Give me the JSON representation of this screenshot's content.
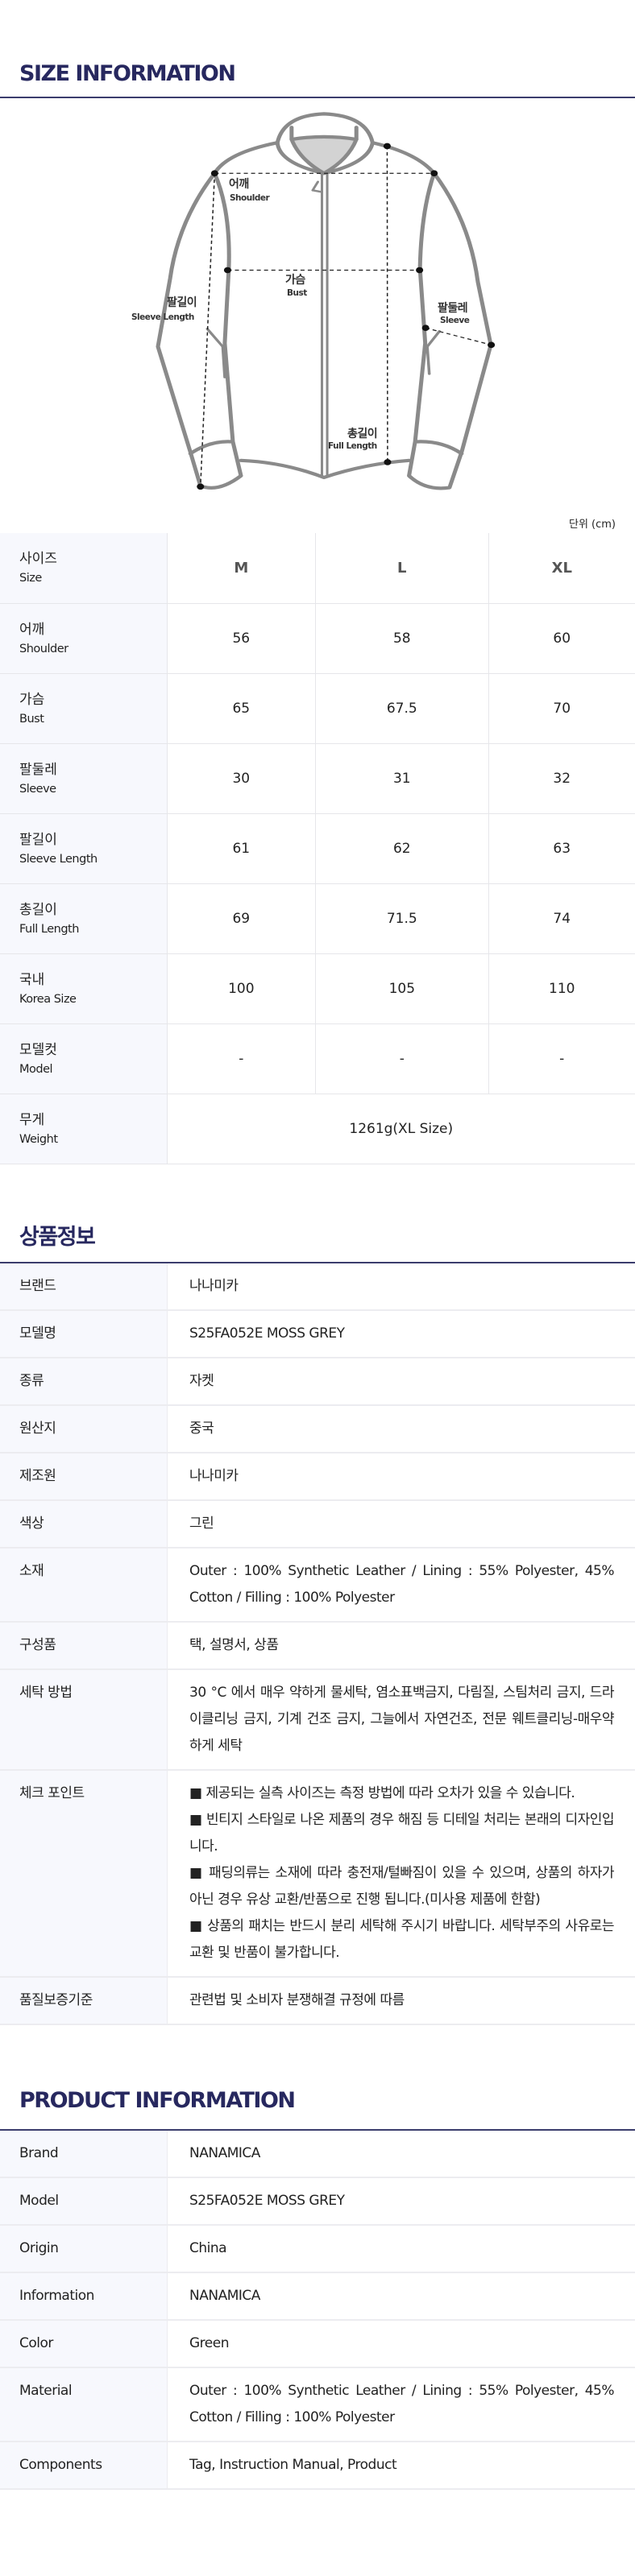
{
  "size_section": {
    "title": "SIZE INFORMATION",
    "unit": "단위 (cm)",
    "diagram_labels": {
      "shoulder_ko": "어깨",
      "shoulder_en": "Shoulder",
      "bust_ko": "가슴",
      "bust_en": "Bust",
      "sleeve_length_ko": "팔길이",
      "sleeve_length_en": "Sleeve Length",
      "sleeve_ko": "팔둘레",
      "sleeve_en": "Sleeve",
      "full_length_ko": "총길이",
      "full_length_en": "Full Length"
    },
    "sizes": [
      "M",
      "L",
      "XL"
    ],
    "header": {
      "ko": "사이즈",
      "en": "Size"
    },
    "rows": [
      {
        "ko": "어깨",
        "en": "Shoulder",
        "values": [
          "56",
          "58",
          "60"
        ]
      },
      {
        "ko": "가슴",
        "en": "Bust",
        "values": [
          "65",
          "67.5",
          "70"
        ]
      },
      {
        "ko": "팔둘레",
        "en": "Sleeve",
        "values": [
          "30",
          "31",
          "32"
        ]
      },
      {
        "ko": "팔길이",
        "en": "Sleeve Length",
        "values": [
          "61",
          "62",
          "63"
        ]
      },
      {
        "ko": "총길이",
        "en": "Full Length",
        "values": [
          "69",
          "71.5",
          "74"
        ]
      },
      {
        "ko": "국내",
        "en": "Korea Size",
        "values": [
          "100",
          "105",
          "110"
        ]
      },
      {
        "ko": "모델컷",
        "en": "Model",
        "values": [
          "-",
          "-",
          "-"
        ]
      }
    ],
    "weight": {
      "ko": "무게",
      "en": "Weight",
      "value": "1261g(XL Size)"
    }
  },
  "product_info_ko": {
    "title": "상품정보",
    "rows": [
      {
        "label": "브랜드",
        "value": "나나미카"
      },
      {
        "label": "모델명",
        "value": "S25FA052E MOSS GREY"
      },
      {
        "label": "종류",
        "value": "자켓"
      },
      {
        "label": "원산지",
        "value": "중국"
      },
      {
        "label": "제조원",
        "value": "나나미카"
      },
      {
        "label": "색상",
        "value": "그린"
      },
      {
        "label": "소재",
        "value": "Outer : 100% Synthetic Leather / Lining : 55% Polyester, 45% Cotton / Filling : 100% Polyester"
      },
      {
        "label": "구성품",
        "value": "택, 설명서, 상품"
      },
      {
        "label": "세탁 방법",
        "value": "30 °C 에서 매우 약하게 물세탁, 염소표백금지, 다림질, 스팀처리 금지, 드라이클리닝 금지, 기계 건조 금지, 그늘에서 자연건조, 전문 웨트클리닝-매우약하게 세탁"
      }
    ],
    "check_point": {
      "label": "체크 포인트",
      "items": [
        "■ 제공되는 실측 사이즈는 측정 방법에 따라 오차가 있을 수 있습니다.",
        "■ 빈티지 스타일로 나온 제품의 경우 해짐 등 디테일 처리는 본래의 디자인입니다.",
        "■ 패딩의류는 소재에 따라 충전재/털빠짐이 있을 수 있으며, 상품의 하자가 아닌 경우 유상 교환/반품으로 진행 됩니다.(미사용 제품에 한함)",
        "■ 상품의 패치는 반드시 분리 세탁해 주시기 바랍니다. 세탁부주의 사유로는 교환 및 반품이 불가합니다."
      ]
    },
    "quality": {
      "label": "품질보증기준",
      "value": "관련법 및 소비자 분쟁해결 규정에 따름"
    }
  },
  "product_info_en": {
    "title": "PRODUCT INFORMATION",
    "rows": [
      {
        "label": "Brand",
        "value": "NANAMICA"
      },
      {
        "label": "Model",
        "value": "S25FA052E MOSS GREY"
      },
      {
        "label": "Origin",
        "value": "China"
      },
      {
        "label": "Information",
        "value": "NANAMICA"
      },
      {
        "label": "Color",
        "value": "Green"
      },
      {
        "label": "Material",
        "value": "Outer : 100% Synthetic Leather / Lining : 55% Polyester, 45% Cotton / Filling : 100% Polyester"
      },
      {
        "label": "Components",
        "value": "Tag, Instruction Manual, Product"
      }
    ]
  },
  "colors": {
    "heading": "#27285f",
    "rule": "#3b3d6d",
    "label_bg": "#f7f8fd",
    "jacket_stroke": "#8a8a8a"
  }
}
